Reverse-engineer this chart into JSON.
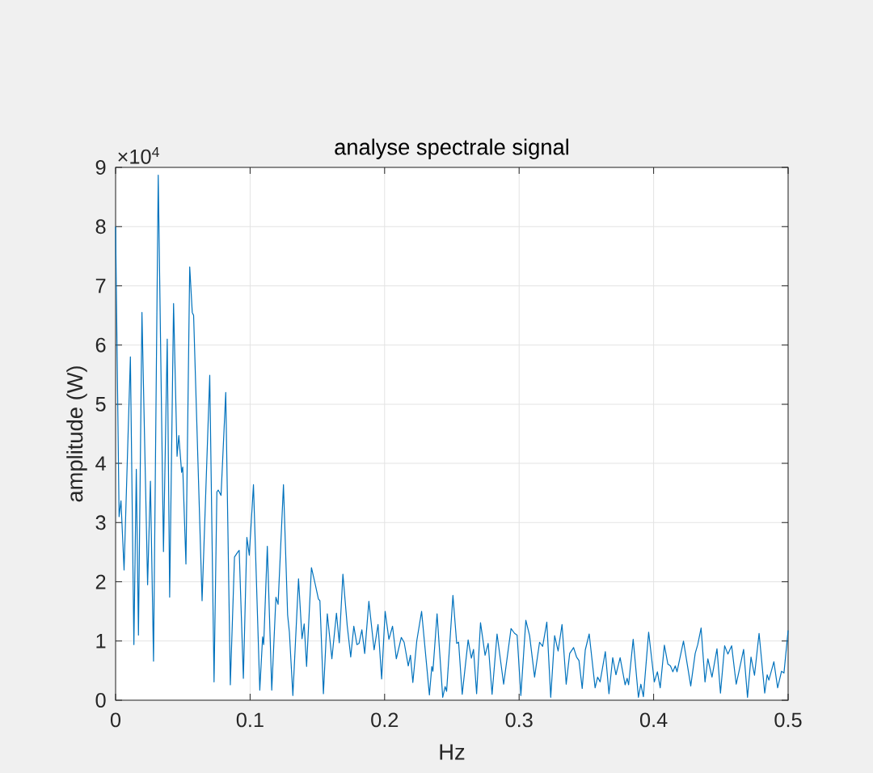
{
  "chart_data": {
    "type": "line",
    "title": "analyse spectrale signal",
    "xlabel": "Hz",
    "ylabel": "amplitude (W)",
    "annotations": [
      "×10$^{4}$"
    ],
    "color": "#0072bd",
    "grid": true,
    "xlim": [
      0,
      0.5
    ],
    "xticks": [
      0,
      0.1,
      0.2,
      0.3,
      0.4,
      0.5
    ],
    "ylim": [
      0,
      9
    ],
    "yticks": [
      0,
      1,
      2,
      3,
      4,
      5,
      6,
      7,
      8,
      9
    ],
    "x": [
      0,
      0.0026,
      0.004,
      0.0063,
      0.011,
      0.0136,
      0.0154,
      0.017,
      0.0196,
      0.0238,
      0.0259,
      0.0282,
      0.0317,
      0.0356,
      0.0384,
      0.0402,
      0.0431,
      0.0457,
      0.047,
      0.0491,
      0.0499,
      0.0523,
      0.0551,
      0.057,
      0.058,
      0.0643,
      0.07,
      0.0732,
      0.0753,
      0.0763,
      0.0784,
      0.0819,
      0.0853,
      0.0884,
      0.0911,
      0.0919,
      0.095,
      0.0976,
      0.0994,
      0.1025,
      0.1072,
      0.1093,
      0.1101,
      0.1128,
      0.1161,
      0.1192,
      0.1208,
      0.1248,
      0.1279,
      0.1292,
      0.1318,
      0.136,
      0.1386,
      0.1402,
      0.142,
      0.1456,
      0.1485,
      0.1508,
      0.1519,
      0.1545,
      0.1574,
      0.1608,
      0.1642,
      0.1663,
      0.169,
      0.1722,
      0.1748,
      0.1771,
      0.1794,
      0.181,
      0.1831,
      0.1852,
      0.1883,
      0.1922,
      0.1951,
      0.1978,
      0.2004,
      0.2032,
      0.2059,
      0.2087,
      0.2124,
      0.2145,
      0.2176,
      0.2192,
      0.221,
      0.2239,
      0.2275,
      0.2333,
      0.2351,
      0.2359,
      0.239,
      0.2432,
      0.245,
      0.2461,
      0.2508,
      0.2536,
      0.255,
      0.2577,
      0.2621,
      0.2645,
      0.2661,
      0.2684,
      0.2713,
      0.2747,
      0.277,
      0.2799,
      0.2836,
      0.2885,
      0.294,
      0.2966,
      0.2985,
      0.3013,
      0.305,
      0.3078,
      0.3115,
      0.3152,
      0.3175,
      0.3206,
      0.3235,
      0.3264,
      0.329,
      0.3319,
      0.335,
      0.3376,
      0.3405,
      0.3427,
      0.3445,
      0.3469,
      0.3492,
      0.3521,
      0.3565,
      0.3584,
      0.3602,
      0.3641,
      0.3668,
      0.3696,
      0.372,
      0.3751,
      0.3788,
      0.3803,
      0.3814,
      0.3848,
      0.3887,
      0.3905,
      0.3924,
      0.3963,
      0.4005,
      0.4028,
      0.4049,
      0.408,
      0.4106,
      0.4125,
      0.4143,
      0.4161,
      0.4174,
      0.4222,
      0.4276,
      0.4309,
      0.4328,
      0.4353,
      0.4382,
      0.4403,
      0.4434,
      0.4471,
      0.4497,
      0.4528,
      0.4552,
      0.458,
      0.4614,
      0.4635,
      0.4669,
      0.4698,
      0.4724,
      0.475,
      0.4784,
      0.4826,
      0.4844,
      0.4857,
      0.4894,
      0.4922,
      0.4951,
      0.4969,
      0.5
    ],
    "values": [
      8.0,
      3.1,
      3.37,
      2.2,
      5.8,
      0.94,
      3.9,
      1.1,
      6.55,
      1.95,
      3.7,
      0.66,
      8.87,
      2.51,
      6.1,
      1.74,
      6.7,
      4.12,
      4.47,
      3.85,
      3.94,
      2.3,
      7.32,
      6.55,
      6.5,
      1.68,
      5.49,
      0.31,
      3.52,
      3.55,
      3.46,
      5.2,
      0.26,
      2.42,
      2.51,
      2.53,
      0.37,
      2.75,
      2.45,
      3.64,
      0.17,
      1.07,
      0.94,
      2.6,
      0.17,
      1.74,
      1.62,
      3.64,
      1.44,
      1.15,
      0.08,
      2.05,
      1.04,
      1.29,
      0.57,
      2.24,
      1.95,
      1.71,
      1.68,
      0.11,
      1.46,
      0.7,
      1.47,
      0.97,
      2.13,
      1.26,
      0.73,
      1.25,
      0.94,
      0.96,
      1.19,
      0.79,
      1.67,
      0.85,
      1.28,
      0.36,
      1.5,
      1.03,
      1.25,
      0.7,
      1.06,
      0.98,
      0.58,
      0.76,
      0.3,
      1.0,
      1.5,
      0.09,
      0.57,
      0.49,
      1.46,
      0.05,
      0.23,
      0.15,
      1.77,
      0.96,
      0.98,
      0.1,
      1.02,
      0.71,
      0.86,
      0.11,
      1.31,
      0.76,
      0.96,
      0.1,
      1.12,
      0.27,
      1.21,
      1.13,
      1.1,
      0.08,
      1.35,
      1.09,
      0.39,
      0.98,
      0.91,
      1.32,
      0.05,
      1.09,
      0.83,
      1.28,
      0.27,
      0.79,
      0.89,
      0.73,
      0.67,
      0.2,
      0.85,
      1.12,
      0.21,
      0.39,
      0.31,
      0.82,
      0.11,
      0.72,
      0.43,
      0.72,
      0.26,
      0.37,
      0.26,
      1.03,
      0.05,
      0.27,
      0.06,
      1.15,
      0.31,
      0.48,
      0.21,
      0.93,
      0.61,
      0.58,
      0.48,
      0.58,
      0.48,
      1.0,
      0.24,
      0.79,
      0.94,
      1.22,
      0.31,
      0.7,
      0.39,
      0.87,
      0.12,
      0.92,
      0.78,
      0.92,
      0.27,
      0.49,
      0.86,
      0.05,
      0.73,
      0.42,
      1.13,
      0.12,
      0.43,
      0.34,
      0.65,
      0.21,
      0.49,
      0.46,
      1.18
    ]
  }
}
